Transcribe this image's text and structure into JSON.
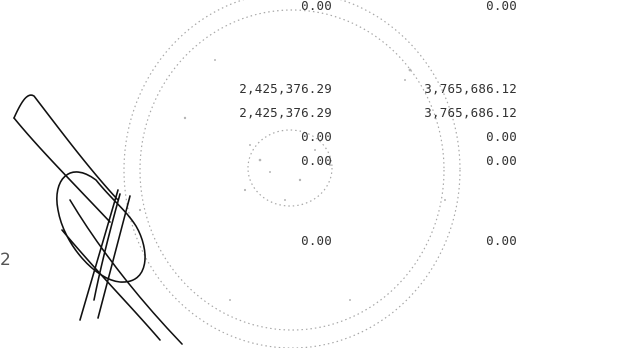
{
  "rows": [
    {
      "col1": "0.00",
      "col2": "0.00"
    },
    {
      "col1": "2,425,376.29",
      "col2": "3,765,686.12"
    },
    {
      "col1": "2,425,376.29",
      "col2": "3,765,686.12"
    },
    {
      "col1": "0.00",
      "col2": "0.00"
    },
    {
      "col1": "0.00",
      "col2": "0.00"
    },
    {
      "col1": "0.00",
      "col2": "0.00"
    }
  ],
  "margin_number": "2",
  "colors": {
    "text": "#333333",
    "stamp": "#9a9a9a",
    "signature": "#111111"
  }
}
